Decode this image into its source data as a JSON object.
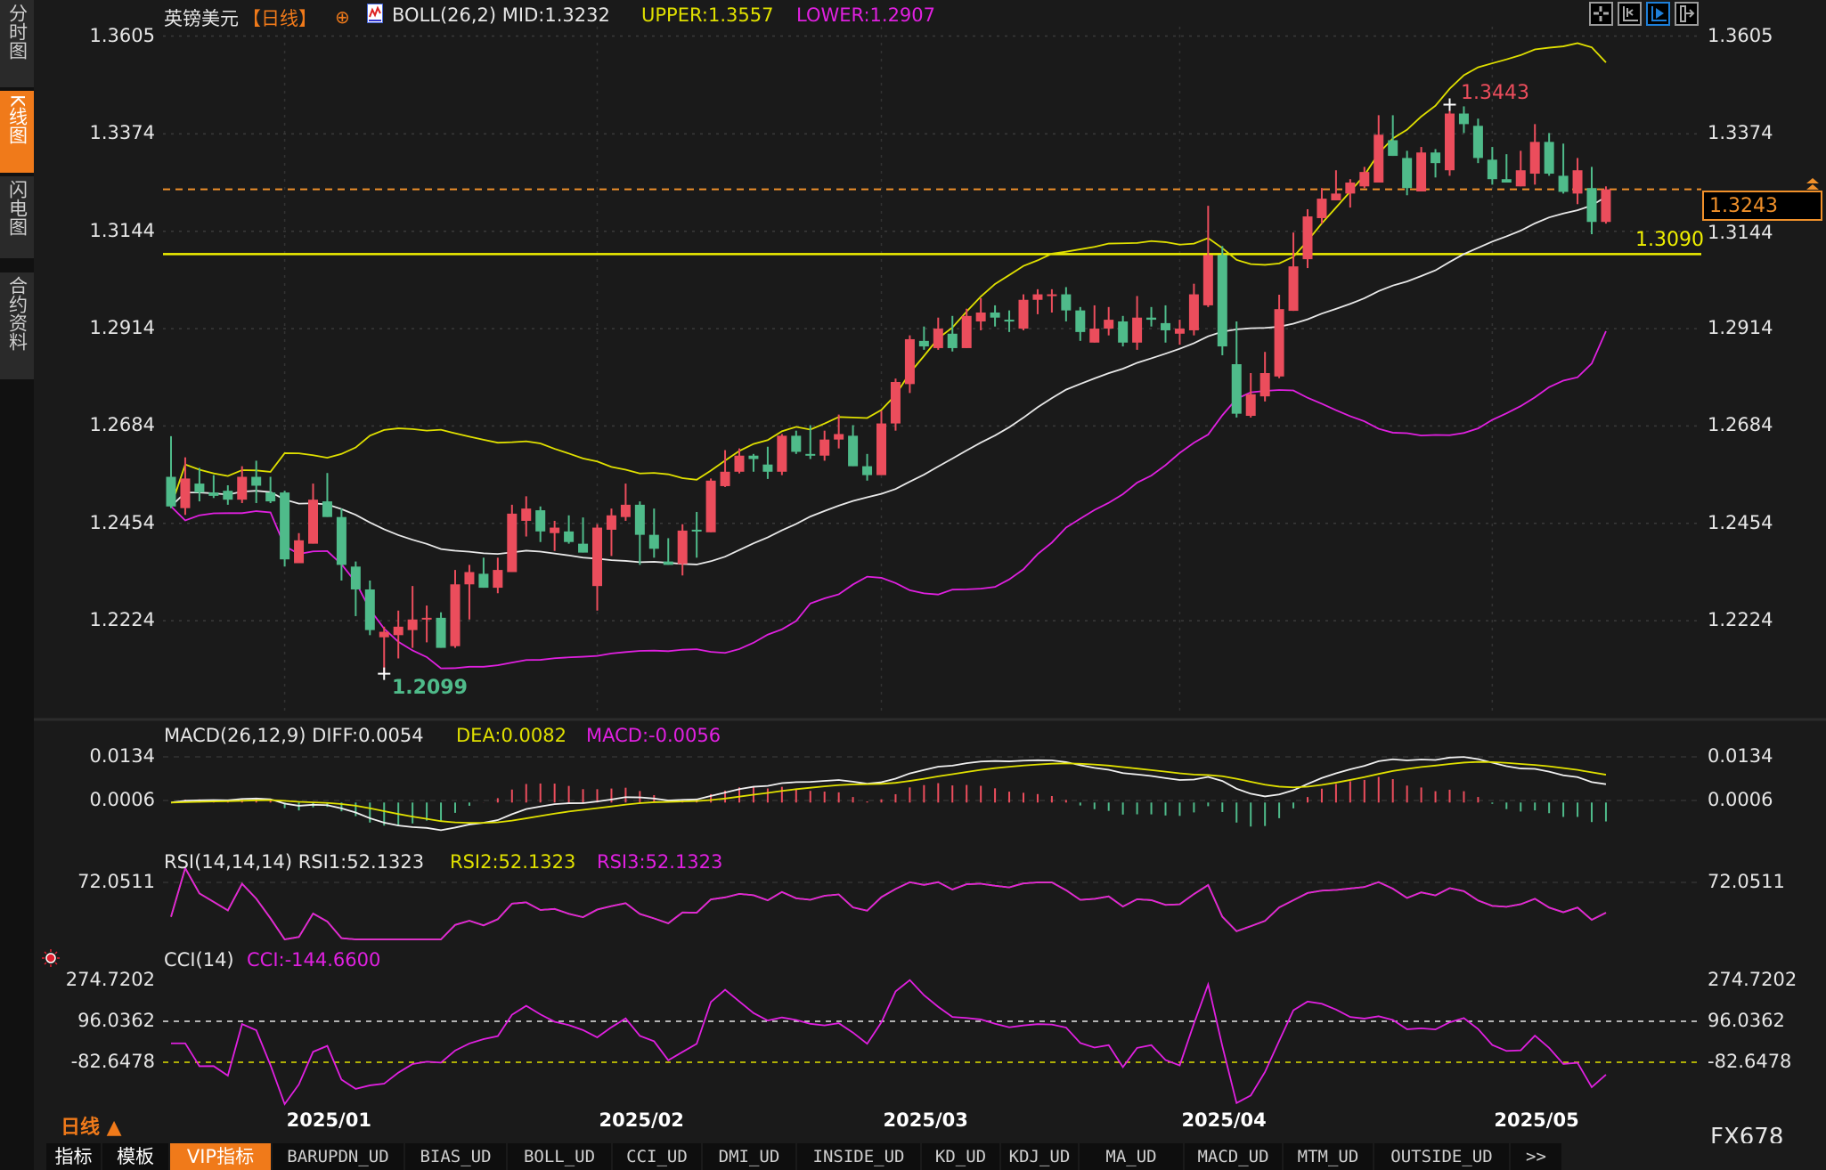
{
  "sidebar": {
    "tabs": [
      {
        "label": "分时图",
        "active": false
      },
      {
        "label": "K线图",
        "active": true
      },
      {
        "label": "闪电图",
        "active": false
      },
      {
        "label": "合约资料",
        "active": false
      }
    ]
  },
  "header": {
    "symbol": "英镑美元",
    "period": "【日线】",
    "boll_label": "BOLL(26,2) MID:1.3232",
    "boll_upper": "UPPER:1.3557",
    "boll_lower": "LOWER:1.2907",
    "toolbar_icons": [
      "crosshair-icon",
      "zoom-range-icon",
      "play-icon",
      "move-right-icon"
    ]
  },
  "price_axis": {
    "ticks": [
      "1.3605",
      "1.3374",
      "1.3144",
      "1.2914",
      "1.2684",
      "1.2454",
      "1.2224"
    ],
    "current_price": "1.3243",
    "support_level": "1.3090",
    "high_label": "1.3443",
    "low_label": "1.2099"
  },
  "macd": {
    "title": "MACD(26,12,9) DIFF:0.0054",
    "dea": "DEA:0.0082",
    "macd": "MACD:-0.0056",
    "ticks": [
      "0.0134",
      "0.0006"
    ]
  },
  "rsi": {
    "title": "RSI(14,14,14) RSI1:52.1323",
    "rsi2": "RSI2:52.1323",
    "rsi3": "RSI3:52.1323",
    "ticks": [
      "72.0511"
    ]
  },
  "cci": {
    "title": "CCI(14)",
    "value": "CCI:-144.6600",
    "ticks": [
      "274.7202",
      "96.0362",
      "-82.6478"
    ]
  },
  "time_axis": {
    "labels": [
      "2025/01",
      "2025/02",
      "2025/03",
      "2025/04",
      "2025/05"
    ]
  },
  "period_selector": "日线 ▲",
  "watermark": "FX678",
  "bottom_tabs": [
    {
      "label": "指标"
    },
    {
      "label": "模板"
    },
    {
      "label": "VIP指标",
      "active": true
    },
    {
      "label": "BARUPDN_UD"
    },
    {
      "label": "BIAS_UD"
    },
    {
      "label": "BOLL_UD"
    },
    {
      "label": "CCI_UD"
    },
    {
      "label": "DMI_UD"
    },
    {
      "label": "INSIDE_UD"
    },
    {
      "label": "KD_UD"
    },
    {
      "label": "KDJ_UD"
    },
    {
      "label": "MA_UD"
    },
    {
      "label": "MACD_UD"
    },
    {
      "label": "MTM_UD"
    },
    {
      "label": "OUTSIDE_UD"
    },
    {
      "label": ">>"
    }
  ],
  "colors": {
    "up": "#eb4d5c",
    "down": "#4fbb8a",
    "mid": "#e8e8e8",
    "upper": "#e0e000",
    "lower": "#e020e0",
    "accent": "#f07a1a",
    "background": "#1a1a1a"
  },
  "chart_data": {
    "type": "candlestick",
    "symbol": "英镑美元",
    "period": "日线",
    "ylim": [
      1.2099,
      1.3605
    ],
    "month_starts": {
      "2025/01": 8,
      "2025/02": 30,
      "2025/03": 50,
      "2025/04": 71,
      "2025/05": 93
    },
    "indicators": {
      "boll": [
        26,
        2
      ],
      "macd": [
        26,
        12,
        9
      ],
      "rsi": [
        14,
        14,
        14
      ],
      "cci": 14
    },
    "horizontal_lines": [
      1.309,
      1.3243
    ],
    "ohlc": [
      [
        1.2564,
        1.266,
        1.249,
        1.2494
      ],
      [
        1.249,
        1.261,
        1.2474,
        1.256
      ],
      [
        1.2548,
        1.2585,
        1.2506,
        1.2527
      ],
      [
        1.2527,
        1.2568,
        1.2514,
        1.2519
      ],
      [
        1.2531,
        1.2544,
        1.2498,
        1.251
      ],
      [
        1.251,
        1.2589,
        1.2502,
        1.2564
      ],
      [
        1.2564,
        1.2602,
        1.2502,
        1.2543
      ],
      [
        1.2527,
        1.2564,
        1.2502,
        1.2506
      ],
      [
        1.2527,
        1.2531,
        1.2352,
        1.2369
      ],
      [
        1.236,
        1.2431,
        1.236,
        1.2414
      ],
      [
        1.2406,
        1.2548,
        1.2406,
        1.251
      ],
      [
        1.2506,
        1.2573,
        1.2469,
        1.2469
      ],
      [
        1.2469,
        1.2489,
        1.2319,
        1.2356
      ],
      [
        1.2352,
        1.2364,
        1.2235,
        1.2298
      ],
      [
        1.2298,
        1.2319,
        1.219,
        1.2202
      ],
      [
        1.2185,
        1.221,
        1.2099,
        1.2198
      ],
      [
        1.219,
        1.2248,
        1.2135,
        1.221
      ],
      [
        1.2202,
        1.2306,
        1.216,
        1.2227
      ],
      [
        1.2227,
        1.226,
        1.2173,
        1.2231
      ],
      [
        1.2231,
        1.2244,
        1.216,
        1.216
      ],
      [
        1.2164,
        1.2344,
        1.216,
        1.231
      ],
      [
        1.231,
        1.2356,
        1.2227,
        1.2339
      ],
      [
        1.2335,
        1.2373,
        1.2302,
        1.2302
      ],
      [
        1.2302,
        1.2373,
        1.2289,
        1.2344
      ],
      [
        1.2339,
        1.2498,
        1.2339,
        1.2477
      ],
      [
        1.246,
        1.2518,
        1.2423,
        1.2489
      ],
      [
        1.2485,
        1.2494,
        1.241,
        1.2435
      ],
      [
        1.2431,
        1.246,
        1.2389,
        1.2444
      ],
      [
        1.2435,
        1.2473,
        1.2406,
        1.241
      ],
      [
        1.2406,
        1.2468,
        1.2385,
        1.2385
      ],
      [
        1.2306,
        1.2452,
        1.2248,
        1.2444
      ],
      [
        1.2439,
        1.2489,
        1.2377,
        1.2473
      ],
      [
        1.2469,
        1.2548,
        1.246,
        1.2498
      ],
      [
        1.2498,
        1.2506,
        1.2356,
        1.2427
      ],
      [
        1.2427,
        1.2489,
        1.2373,
        1.2394
      ],
      [
        1.2364,
        1.2419,
        1.2356,
        1.2356
      ],
      [
        1.2358,
        1.2452,
        1.2331,
        1.2437
      ],
      [
        1.2439,
        1.2481,
        1.2373,
        1.2435
      ],
      [
        1.2433,
        1.256,
        1.2433,
        1.2555
      ],
      [
        1.2542,
        1.2627,
        1.254,
        1.2576
      ],
      [
        1.2576,
        1.2631,
        1.2572,
        1.2614
      ],
      [
        1.2614,
        1.2618,
        1.2576,
        1.2606
      ],
      [
        1.2593,
        1.2635,
        1.2559,
        1.2576
      ],
      [
        1.2576,
        1.2665,
        1.2568,
        1.2661
      ],
      [
        1.2661,
        1.2673,
        1.2618,
        1.2623
      ],
      [
        1.2618,
        1.2686,
        1.2606,
        1.2614
      ],
      [
        1.2614,
        1.2673,
        1.2602,
        1.2652
      ],
      [
        1.2652,
        1.2711,
        1.2631,
        1.2665
      ],
      [
        1.2661,
        1.2686,
        1.2589,
        1.2589
      ],
      [
        1.2589,
        1.2618,
        1.2555,
        1.2568
      ],
      [
        1.2568,
        1.272,
        1.2568,
        1.269
      ],
      [
        1.269,
        1.2796,
        1.2673,
        1.2788
      ],
      [
        1.2783,
        1.2898,
        1.2762,
        1.2889
      ],
      [
        1.2885,
        1.2919,
        1.2864,
        1.2872
      ],
      [
        1.2868,
        1.294,
        1.2864,
        1.2914
      ],
      [
        1.2902,
        1.2944,
        1.286,
        1.2868
      ],
      [
        1.2868,
        1.2961,
        1.2868,
        1.2944
      ],
      [
        1.2931,
        1.2986,
        1.291,
        1.2952
      ],
      [
        1.2952,
        1.2969,
        1.2919,
        1.294
      ],
      [
        1.2935,
        1.2957,
        1.2906,
        1.2931
      ],
      [
        1.2914,
        1.2995,
        1.291,
        1.2982
      ],
      [
        1.2982,
        1.3007,
        1.2948,
        1.2995
      ],
      [
        1.2991,
        1.3007,
        1.2952,
        1.2995
      ],
      [
        1.2995,
        1.3012,
        1.2931,
        1.2957
      ],
      [
        1.2957,
        1.2965,
        1.2885,
        1.2906
      ],
      [
        1.2881,
        1.2969,
        1.2881,
        1.2914
      ],
      [
        1.2914,
        1.2965,
        1.2898,
        1.2935
      ],
      [
        1.2931,
        1.2944,
        1.2872,
        1.2881
      ],
      [
        1.2881,
        1.2991,
        1.2864,
        1.294
      ],
      [
        1.294,
        1.2965,
        1.2919,
        1.2935
      ],
      [
        1.2927,
        1.2969,
        1.2881,
        1.291
      ],
      [
        1.2902,
        1.2935,
        1.2876,
        1.2914
      ],
      [
        1.291,
        1.302,
        1.2898,
        1.2995
      ],
      [
        1.2969,
        1.3204,
        1.2965,
        1.3088
      ],
      [
        1.3088,
        1.3109,
        1.2851,
        1.2872
      ],
      [
        1.283,
        1.2931,
        1.2704,
        1.2713
      ],
      [
        1.2708,
        1.2809,
        1.2704,
        1.2759
      ],
      [
        1.2754,
        1.2859,
        1.2742,
        1.2809
      ],
      [
        1.2801,
        1.2994,
        1.2797,
        1.296
      ],
      [
        1.2956,
        1.3141,
        1.2956,
        1.3061
      ],
      [
        1.3078,
        1.3196,
        1.3057,
        1.3179
      ],
      [
        1.3175,
        1.3246,
        1.3162,
        1.3221
      ],
      [
        1.3217,
        1.3288,
        1.3217,
        1.3233
      ],
      [
        1.3233,
        1.3267,
        1.32,
        1.3259
      ],
      [
        1.325,
        1.3296,
        1.3246,
        1.3284
      ],
      [
        1.3259,
        1.3418,
        1.3259,
        1.3372
      ],
      [
        1.3359,
        1.3418,
        1.3322,
        1.3322
      ],
      [
        1.3317,
        1.3334,
        1.3229,
        1.3246
      ],
      [
        1.3238,
        1.3343,
        1.3238,
        1.333
      ],
      [
        1.333,
        1.3338,
        1.3271,
        1.3305
      ],
      [
        1.3288,
        1.3443,
        1.3275,
        1.3422
      ],
      [
        1.3422,
        1.3439,
        1.3376,
        1.3397
      ],
      [
        1.3393,
        1.341,
        1.3305,
        1.3317
      ],
      [
        1.3313,
        1.3343,
        1.3254,
        1.3267
      ],
      [
        1.3267,
        1.3326,
        1.3259,
        1.3259
      ],
      [
        1.325,
        1.3334,
        1.325,
        1.3288
      ],
      [
        1.328,
        1.3397,
        1.3254,
        1.3355
      ],
      [
        1.3355,
        1.3376,
        1.3275,
        1.328
      ],
      [
        1.3275,
        1.3351,
        1.3233,
        1.3237
      ],
      [
        1.3233,
        1.3317,
        1.3208,
        1.3288
      ],
      [
        1.3246,
        1.3296,
        1.3137,
        1.3166
      ],
      [
        1.3166,
        1.325,
        1.3162,
        1.3243
      ]
    ]
  }
}
